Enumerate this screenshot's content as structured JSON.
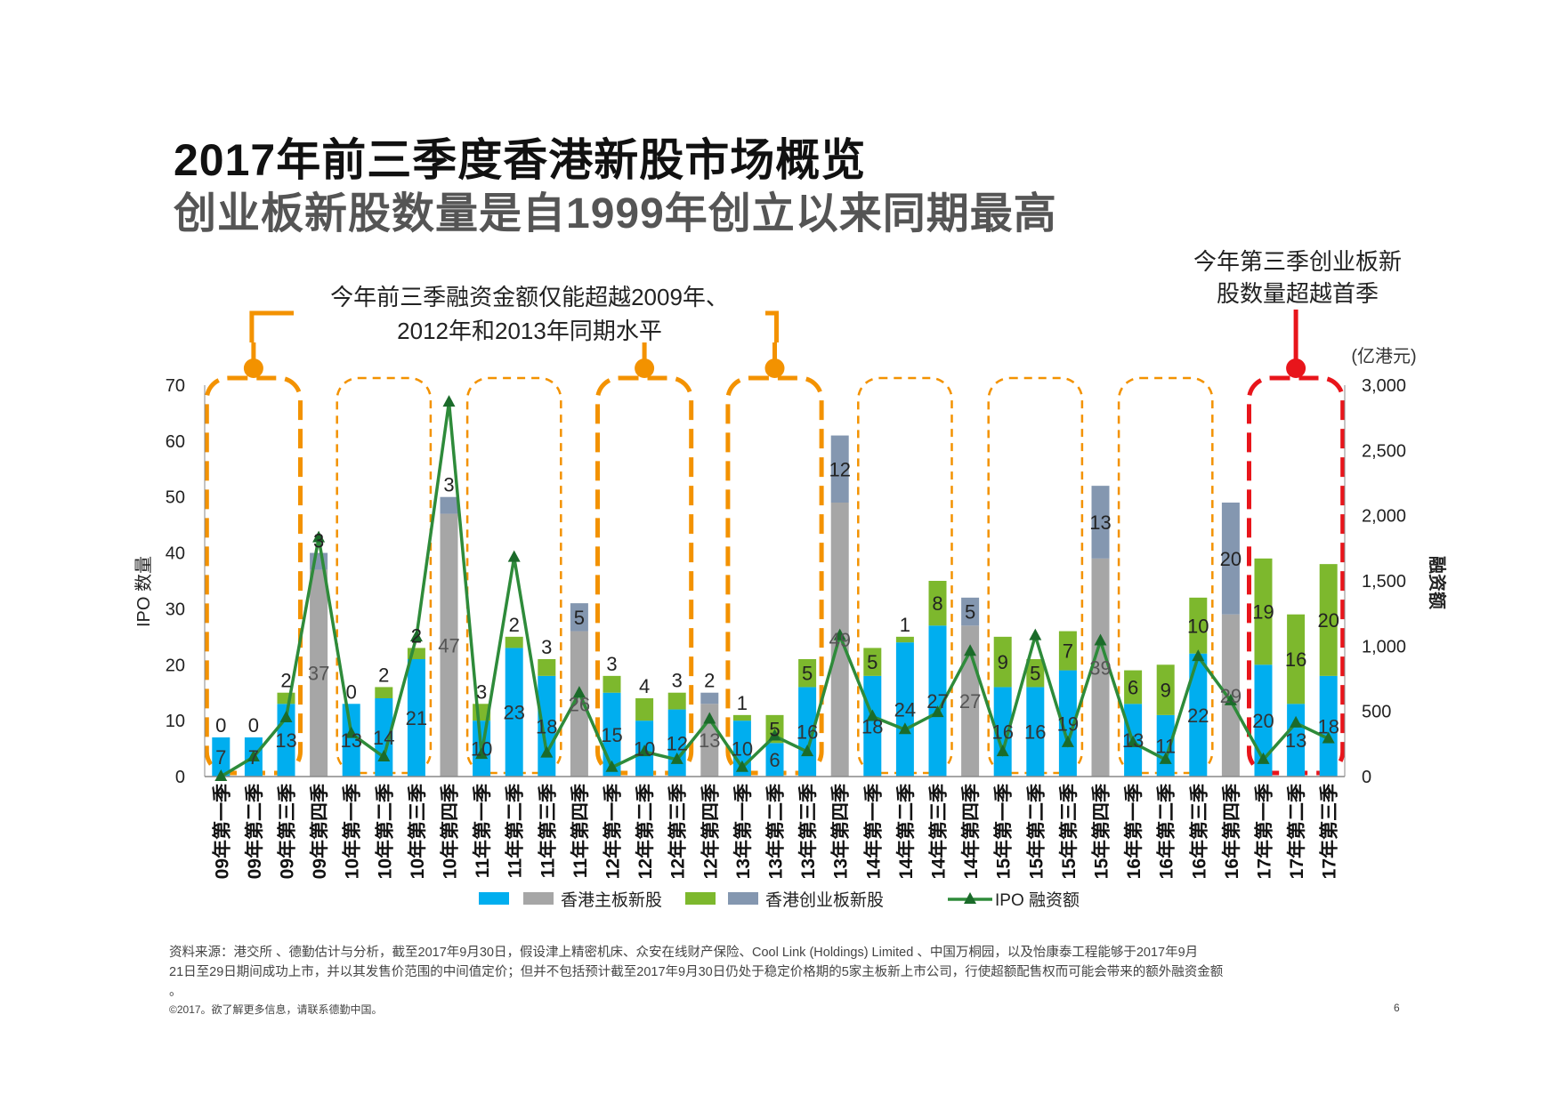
{
  "title": "2017年前三季度香港新股市场概览",
  "subtitle": "创业板新股数量是自1999年创立以来同期最高",
  "annotations": {
    "left_line1": "今年前三季融资金额仅能超越2009年、",
    "left_line2": "2012年和2013年同期水平",
    "right_line1": "今年第三季创业板新",
    "right_line2": "股数量超越首季"
  },
  "footer": {
    "source_line1": "资料来源：港交所 、德勤估计与分析，截至2017年9月30日，假设津上精密机床、众安在线财产保险、Cool Link (Holdings) Limited 、中国万桐园，以及怡康泰工程能够于2017年9月",
    "source_line2": "21日至29日期间成功上市，并以其发售价范围的中间值定价；但并不包括预计截至2017年9月30日仍处于稳定价格期的5家主板新上市公司，行使超额配售权而可能会带来的额外融资金额",
    "source_line3": "。",
    "copyright": "©2017。欲了解更多信息，请联系德勤中国。",
    "page_number": "6"
  },
  "colors": {
    "main_q123": "#00AEEF",
    "main_q4": "#A6A6A6",
    "gem_q123": "#7DB82D",
    "gem_q4": "#8497B0",
    "line": "#2E8B3A",
    "marker": "#1B6B2A",
    "orange": "#F39200",
    "red": "#E8151B"
  },
  "chart_data": {
    "type": "bar",
    "title": "",
    "ylabel": "IPO 数量",
    "y2label": "融资额",
    "y2unit": "(亿港元)",
    "ylim": [
      0,
      70
    ],
    "y2lim": [
      0,
      3000
    ],
    "yticks": [
      "0",
      "10",
      "20",
      "30",
      "40",
      "50",
      "60",
      "70"
    ],
    "y2ticks": [
      "0",
      "500",
      "1,000",
      "1,500",
      "2,000",
      "2,500",
      "3,000"
    ],
    "categories": [
      "09年第一季",
      "09年第二季",
      "09年第三季",
      "09年第四季",
      "10年第一季",
      "10年第二季",
      "10年第三季",
      "10年第四季",
      "11年第一季",
      "11年第二季",
      "11年第三季",
      "11年第四季",
      "12年第一季",
      "12年第二季",
      "12年第三季",
      "12年第四季",
      "13年第一季",
      "13年第二季",
      "13年第三季",
      "13年第四季",
      "14年第一季",
      "14年第二季",
      "14年第三季",
      "14年第四季",
      "15年第一季",
      "15年第二季",
      "15年第三季",
      "15年第四季",
      "16年第一季",
      "16年第二季",
      "16年第三季",
      "16年第四季",
      "17年第一季",
      "17年第二季",
      "17年第三季"
    ],
    "series": [
      {
        "name": "香港主板新股",
        "values": [
          7,
          7,
          13,
          37,
          13,
          14,
          21,
          47,
          10,
          23,
          18,
          26,
          15,
          10,
          12,
          13,
          10,
          6,
          16,
          49,
          18,
          24,
          27,
          27,
          16,
          16,
          19,
          39,
          13,
          11,
          22,
          29,
          20,
          13,
          18
        ]
      },
      {
        "name": "香港创业板新股",
        "values": [
          0,
          0,
          2,
          3,
          0,
          2,
          2,
          3,
          3,
          2,
          3,
          5,
          3,
          4,
          3,
          2,
          1,
          5,
          5,
          12,
          5,
          1,
          8,
          5,
          9,
          5,
          7,
          13,
          6,
          9,
          10,
          20,
          19,
          16,
          20
        ]
      },
      {
        "name": "IPO 融资额",
        "axis": "right",
        "values": [
          0,
          150,
          450,
          1830,
          330,
          150,
          1070,
          2870,
          170,
          1680,
          180,
          640,
          70,
          190,
          130,
          440,
          70,
          310,
          190,
          1080,
          460,
          360,
          490,
          960,
          190,
          1080,
          260,
          1040,
          260,
          130,
          920,
          580,
          130,
          410,
          290
        ]
      }
    ],
    "legend": [
      "香港主板新股",
      "香港创业板新股",
      "IPO 融资额"
    ],
    "orange_groups": [
      [
        0,
        2
      ],
      [
        4,
        6
      ],
      [
        8,
        10
      ],
      [
        12,
        14
      ],
      [
        16,
        18
      ],
      [
        20,
        22
      ],
      [
        24,
        26
      ],
      [
        28,
        30
      ]
    ],
    "red_group": [
      32,
      34
    ]
  }
}
